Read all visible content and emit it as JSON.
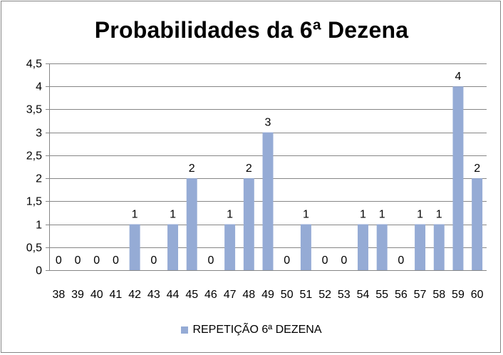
{
  "chart_data": {
    "type": "bar",
    "title": "Probabilidades da 6ª Dezena",
    "xlabel": "",
    "ylabel": "",
    "categories": [
      "38",
      "39",
      "40",
      "41",
      "42",
      "43",
      "44",
      "45",
      "46",
      "47",
      "48",
      "49",
      "50",
      "51",
      "52",
      "53",
      "54",
      "55",
      "56",
      "57",
      "58",
      "59",
      "60"
    ],
    "series": [
      {
        "name": "REPETIÇÃO 6ª DEZENA",
        "values": [
          0,
          0,
          0,
          0,
          1,
          0,
          1,
          2,
          0,
          1,
          2,
          3,
          0,
          1,
          0,
          0,
          1,
          1,
          0,
          1,
          1,
          4,
          2
        ],
        "color": "#95ABD5"
      }
    ],
    "ylim": [
      0,
      4.5
    ],
    "yticks": [
      "0",
      "0,5",
      "1",
      "1,5",
      "2",
      "2,5",
      "3",
      "3,5",
      "4",
      "4,5"
    ],
    "ytick_values": [
      0,
      0.5,
      1,
      1.5,
      2,
      2.5,
      3,
      3.5,
      4,
      4.5
    ],
    "grid": true,
    "legend_position": "bottom",
    "data_labels": true,
    "gridline_color": "#868686",
    "axis_color": "#868686"
  }
}
